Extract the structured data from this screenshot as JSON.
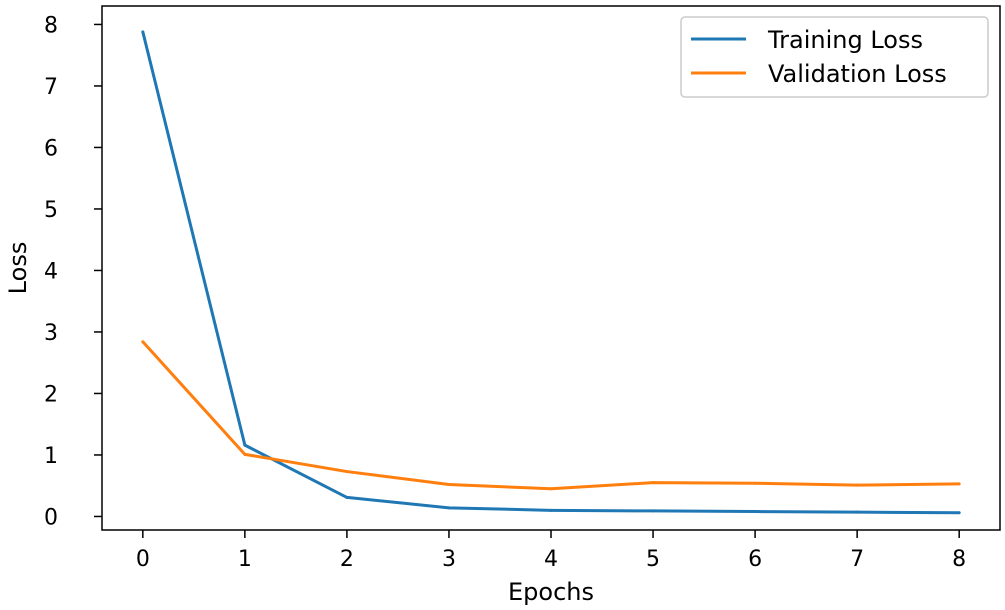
{
  "chart_data": {
    "type": "line",
    "title": "",
    "xlabel": "Epochs",
    "ylabel": "Loss",
    "x": [
      0,
      1,
      2,
      3,
      4,
      5,
      6,
      7,
      8
    ],
    "xlim": [
      -0.4,
      8.4
    ],
    "ylim": [
      -0.22,
      8.3
    ],
    "xticks": [
      0,
      1,
      2,
      3,
      4,
      5,
      6,
      7,
      8
    ],
    "yticks": [
      0,
      1,
      2,
      3,
      4,
      5,
      6,
      7,
      8
    ],
    "grid": false,
    "legend_position": "top-right",
    "series": [
      {
        "name": "Training Loss",
        "color": "#1f77b4",
        "values": [
          7.88,
          1.16,
          0.31,
          0.14,
          0.1,
          0.09,
          0.08,
          0.07,
          0.06
        ]
      },
      {
        "name": "Validation Loss",
        "color": "#ff7f0e",
        "values": [
          2.84,
          1.01,
          0.73,
          0.52,
          0.45,
          0.55,
          0.54,
          0.51,
          0.53
        ]
      }
    ]
  }
}
